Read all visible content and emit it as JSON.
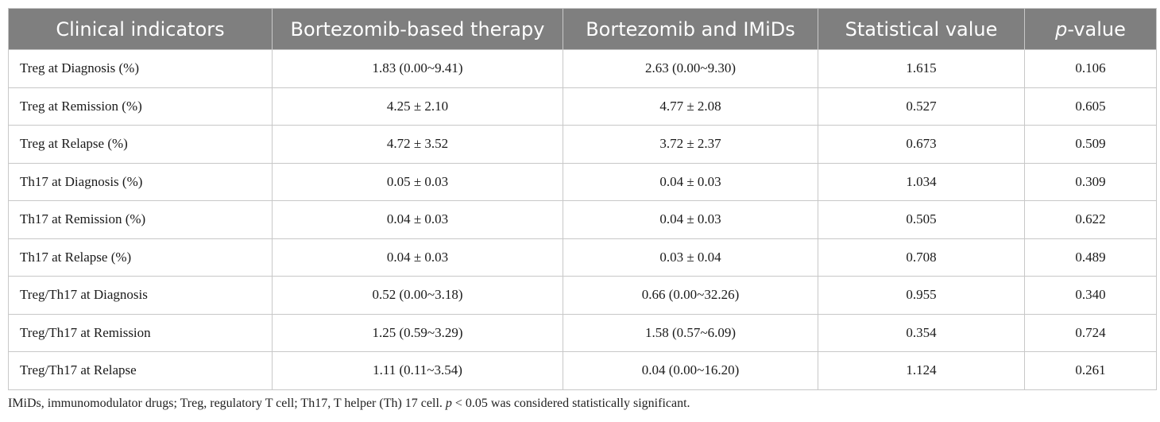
{
  "table": {
    "headers": [
      "Clinical indicators",
      "Bortezomib-based therapy",
      "Bortezomib and IMiDs",
      "Statistical value"
    ],
    "pvalue_header": {
      "p": "p",
      "rest": "-value"
    },
    "rows": [
      [
        "Treg at Diagnosis (%)",
        "1.83 (0.00~9.41)",
        "2.63 (0.00~9.30)",
        "1.615",
        "0.106"
      ],
      [
        "Treg at Remission (%)",
        "4.25 ± 2.10",
        "4.77 ± 2.08",
        "0.527",
        "0.605"
      ],
      [
        "Treg at Relapse (%)",
        "4.72 ± 3.52",
        "3.72 ± 2.37",
        "0.673",
        "0.509"
      ],
      [
        "Th17 at Diagnosis (%)",
        "0.05 ± 0.03",
        "0.04 ± 0.03",
        "1.034",
        "0.309"
      ],
      [
        "Th17 at Remission (%)",
        "0.04 ± 0.03",
        "0.04 ± 0.03",
        "0.505",
        "0.622"
      ],
      [
        "Th17 at Relapse (%)",
        "0.04 ± 0.03",
        "0.03 ± 0.04",
        "0.708",
        "0.489"
      ],
      [
        "Treg/Th17 at Diagnosis",
        "0.52 (0.00~3.18)",
        "0.66 (0.00~32.26)",
        "0.955",
        "0.340"
      ],
      [
        "Treg/Th17 at Remission",
        "1.25 (0.59~3.29)",
        "1.58 (0.57~6.09)",
        "0.354",
        "0.724"
      ],
      [
        "Treg/Th17 at Relapse",
        "1.11 (0.11~3.54)",
        "0.04 (0.00~16.20)",
        "1.124",
        "0.261"
      ]
    ]
  },
  "footnote": {
    "part1": "IMiDs, immunomodulator drugs; Treg, regulatory T cell; Th17, T helper (Th) 17 cell. ",
    "p": "p",
    "part2": " < 0.05 was considered statistically significant."
  }
}
